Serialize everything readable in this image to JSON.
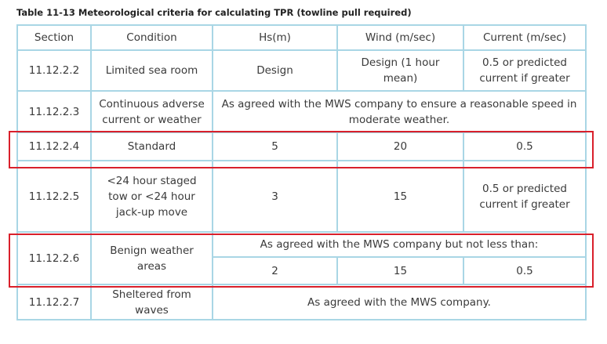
{
  "caption": "Table 11-13 Meteorological criteria for calculating TPR (towline pull required)",
  "header": {
    "section": "Section",
    "condition": "Condition",
    "hs": "Hs(m)",
    "wind": "Wind (m/sec)",
    "current": "Current (m/sec)"
  },
  "rows": [
    {
      "section": "11.12.2.2",
      "condition": "Limited sea room",
      "hs": "Design",
      "wind": "Design (1 hour mean)",
      "current": "0.5 or predicted current if greater"
    },
    {
      "section": "11.12.2.3",
      "condition": "Continuous adverse current or weather",
      "merged": "As agreed with the MWS company to ensure a reasonable speed in moderate weather."
    },
    {
      "section": "11.12.2.4",
      "condition": "Standard",
      "hs": "5",
      "wind": "20",
      "current": "0.5"
    },
    {
      "section": "11.12.2.5",
      "condition": "<24 hour staged tow or <24 hour jack-up move",
      "hs": "3",
      "wind": "15",
      "current": "0.5 or predicted current if greater"
    },
    {
      "section": "11.12.2.6",
      "condition": "Benign weather areas",
      "merged": "As agreed with the MWS company but not less than:",
      "hs": "2",
      "wind": "15",
      "current": "0.5"
    },
    {
      "section": "11.12.2.7",
      "condition": "Sheltered from waves",
      "merged": "As agreed with the MWS company."
    }
  ],
  "colors": {
    "grid": "#a9d6e5",
    "highlight": "#d9202b",
    "text": "#3a3a3a"
  }
}
